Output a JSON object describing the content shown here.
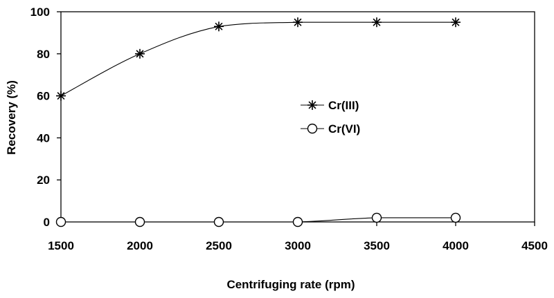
{
  "chart_data": {
    "type": "line",
    "xlabel": "Centrifuging rate (rpm)",
    "ylabel": "Recovery (%)",
    "xlim": [
      1500,
      4500
    ],
    "ylim": [
      0,
      100
    ],
    "x_ticks": [
      "1500",
      "2000",
      "2500",
      "3000",
      "3500",
      "4000",
      "4500"
    ],
    "y_ticks": [
      "0",
      "20",
      "40",
      "60",
      "80",
      "100"
    ],
    "grid": false,
    "legend_position": "center",
    "series": [
      {
        "name": "Cr(III)",
        "marker": "asterisk",
        "x": [
          1500,
          2000,
          2500,
          3000,
          3500,
          4000
        ],
        "y": [
          60,
          80,
          93,
          95,
          95,
          95
        ]
      },
      {
        "name": "Cr(VI)",
        "marker": "circle",
        "x": [
          1500,
          2000,
          2500,
          3000,
          3500,
          4000
        ],
        "y": [
          0,
          0,
          0,
          0,
          2,
          2
        ]
      }
    ]
  }
}
